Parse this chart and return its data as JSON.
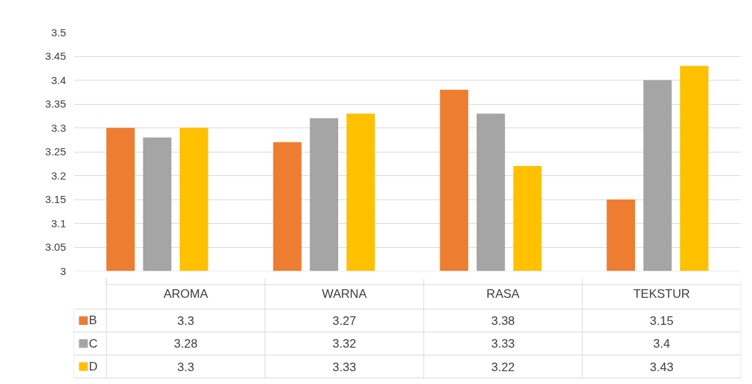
{
  "chart_data": {
    "type": "bar",
    "categories": [
      "AROMA",
      "WARNA",
      "RASA",
      "TEKSTUR"
    ],
    "series": [
      {
        "name": "B",
        "color": "#ed7d31",
        "values": [
          3.3,
          3.27,
          3.38,
          3.15
        ]
      },
      {
        "name": "C",
        "color": "#a5a5a5",
        "values": [
          3.28,
          3.32,
          3.33,
          3.4
        ]
      },
      {
        "name": "D",
        "color": "#ffc000",
        "values": [
          3.3,
          3.33,
          3.22,
          3.43
        ]
      }
    ],
    "ylim": [
      3,
      3.5
    ],
    "yticks": [
      {
        "value": 3,
        "label": "3"
      },
      3.05,
      3.1,
      3.15,
      3.2,
      3.25,
      3.3,
      3.35,
      3.4,
      3.45,
      3.5
    ],
    "grid": "y",
    "data_labels": true,
    "legend": "bottom"
  }
}
